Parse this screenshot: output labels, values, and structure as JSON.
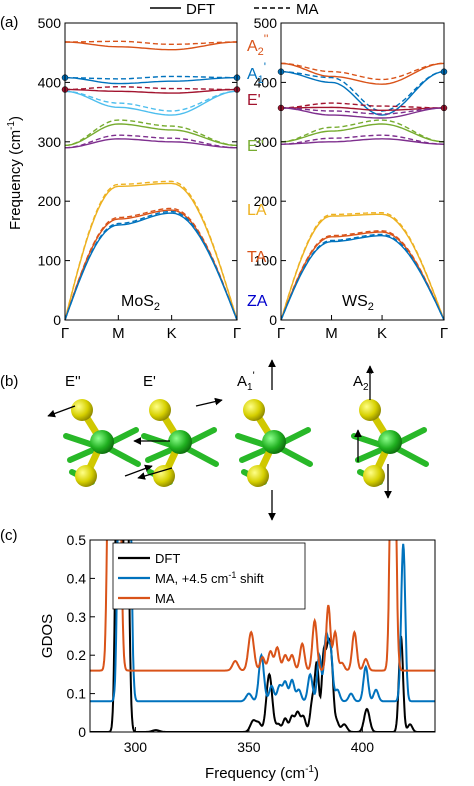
{
  "legend_top": {
    "solid": "DFT",
    "dashed": "MA"
  },
  "panel_labels": {
    "a": "(a)",
    "b": "(b)",
    "c": "(c)"
  },
  "colors": {
    "A2pp": "#d95319",
    "A1p": "#0072bd",
    "Ep": "#a2142f",
    "Epp": "#77ac30",
    "LA": "#edb120",
    "TA": "#d95319",
    "ZA": "#0072bd",
    "violet": "#7e2f8e",
    "cyan": "#4dbeee",
    "atom_mo": "#22aa22",
    "atom_s": "#d8d000"
  },
  "band_panels": [
    {
      "material": "MoS",
      "subscript": "2",
      "kpath": [
        "Γ",
        "M",
        "K",
        "Γ"
      ],
      "ylabel": "Frequency (cm",
      "ylabel_sup": "-1",
      "ylabel_tail": ")",
      "ylim": [
        0,
        500
      ],
      "yticks": [
        "0",
        "100",
        "200",
        "300",
        "400",
        "500"
      ]
    },
    {
      "material": "WS",
      "subscript": "2",
      "kpath": [
        "Γ",
        "M",
        "K",
        "Γ"
      ],
      "ylim": [
        0,
        500
      ],
      "yticks": [
        "0",
        "100",
        "200",
        "300",
        "400",
        "500"
      ]
    }
  ],
  "mode_labels": [
    {
      "main": "A",
      "sub": "2",
      "sup": "''",
      "color": "#d95319"
    },
    {
      "main": "A",
      "sub": "1",
      "sup": "'",
      "color": "#0072bd"
    },
    {
      "main": "E'",
      "sub": "",
      "sup": "",
      "color": "#a2142f"
    },
    {
      "main": "E''",
      "sub": "",
      "sup": "",
      "color": "#77ac30"
    },
    {
      "main": "LA",
      "sub": "",
      "sup": "",
      "color": "#edb120"
    },
    {
      "main": "TA",
      "sub": "",
      "sup": "",
      "color": "#d95319"
    },
    {
      "main": "ZA",
      "sub": "",
      "sup": "",
      "color": "#0000cc"
    }
  ],
  "vibration_modes": [
    {
      "main": "E''",
      "sub": "",
      "sup": ""
    },
    {
      "main": "E'",
      "sub": "",
      "sup": ""
    },
    {
      "main": "A",
      "sub": "1",
      "sup": "'"
    },
    {
      "main": "A",
      "sub": "2",
      "sup": "''"
    }
  ],
  "chart_data": {
    "type": "line",
    "xlabel": "Frequency (cm",
    "xlabel_sup": "-1",
    "xlabel_tail": ")",
    "ylabel": "GDOS",
    "xlim": [
      280,
      432
    ],
    "ylim": [
      0,
      0.5
    ],
    "xticks": [
      "300",
      "350",
      "400"
    ],
    "yticks": [
      "0",
      "0.1",
      "0.2",
      "0.3",
      "0.4",
      "0.5"
    ],
    "legend": [
      {
        "name": "DFT",
        "sup": "",
        "tail": "",
        "color": "#000000"
      },
      {
        "name": "MA, +4.5 cm",
        "sup": "-1",
        "tail": " shift",
        "color": "#0072bd"
      },
      {
        "name": "MA",
        "sup": "",
        "tail": "",
        "color": "#d95319"
      }
    ],
    "series": [
      {
        "name": "DFT",
        "color": "#000000",
        "offset": 0,
        "peaks": [
          [
            292.5,
            1.2,
            1.0
          ],
          [
            296,
            0.9,
            1.0
          ],
          [
            309,
            0.005,
            1.5
          ],
          [
            352,
            0.03,
            1.3
          ],
          [
            354.5,
            0.02,
            1.0
          ],
          [
            359,
            0.15,
            1.3
          ],
          [
            363,
            0.02,
            1.0
          ],
          [
            366,
            0.035,
            1.0
          ],
          [
            369,
            0.04,
            1.0
          ],
          [
            371.5,
            0.05,
            1.0
          ],
          [
            374,
            0.04,
            1.0
          ],
          [
            378,
            0.08,
            1.0
          ],
          [
            380,
            0.17,
            0.9
          ],
          [
            383,
            0.2,
            0.9
          ],
          [
            385,
            0.2,
            0.9
          ],
          [
            386.5,
            0.14,
            0.8
          ],
          [
            388.5,
            0.03,
            1.0
          ],
          [
            392,
            0.02,
            1.2
          ],
          [
            402,
            0.06,
            1.2
          ],
          [
            417,
            0.25,
            0.9
          ],
          [
            421,
            0.02,
            1.0
          ]
        ]
      },
      {
        "name": "MA, +4.5 cm-1 shift",
        "color": "#0072bd",
        "offset": 0.08,
        "peaks": [
          [
            293.5,
            1.2,
            1.0
          ],
          [
            297,
            0.9,
            1.0
          ],
          [
            350,
            0.02,
            1.2
          ],
          [
            355.5,
            0.12,
            1.1
          ],
          [
            360,
            0.04,
            1.0
          ],
          [
            363.5,
            0.04,
            1.0
          ],
          [
            366,
            0.05,
            1.0
          ],
          [
            369,
            0.055,
            1.0
          ],
          [
            372,
            0.03,
            1.0
          ],
          [
            377,
            0.07,
            1.0
          ],
          [
            381,
            0.12,
            0.9
          ],
          [
            384,
            0.165,
            0.9
          ],
          [
            386,
            0.13,
            0.9
          ],
          [
            389,
            0.03,
            1.0
          ],
          [
            395,
            0.02,
            1.0
          ],
          [
            401.5,
            0.09,
            1.0
          ],
          [
            406,
            0.03,
            1.0
          ],
          [
            418,
            0.41,
            0.9
          ]
        ]
      },
      {
        "name": "MA",
        "color": "#d95319",
        "offset": 0.16,
        "peaks": [
          [
            289,
            1.2,
            1.0
          ],
          [
            292.5,
            0.9,
            1.0
          ],
          [
            344,
            0.025,
            1.2
          ],
          [
            351,
            0.1,
            1.2
          ],
          [
            356,
            0.035,
            1.0
          ],
          [
            359.5,
            0.05,
            1.0
          ],
          [
            362.5,
            0.06,
            1.0
          ],
          [
            366,
            0.04,
            1.0
          ],
          [
            369,
            0.04,
            1.0
          ],
          [
            373.5,
            0.07,
            1.0
          ],
          [
            379,
            0.13,
            1.0
          ],
          [
            385,
            0.17,
            0.9
          ],
          [
            388,
            0.1,
            0.9
          ],
          [
            391,
            0.02,
            1.0
          ],
          [
            396.5,
            0.1,
            1.0
          ],
          [
            401.5,
            0.03,
            1.0
          ],
          [
            413.5,
            1.2,
            1.0
          ]
        ]
      }
    ]
  }
}
